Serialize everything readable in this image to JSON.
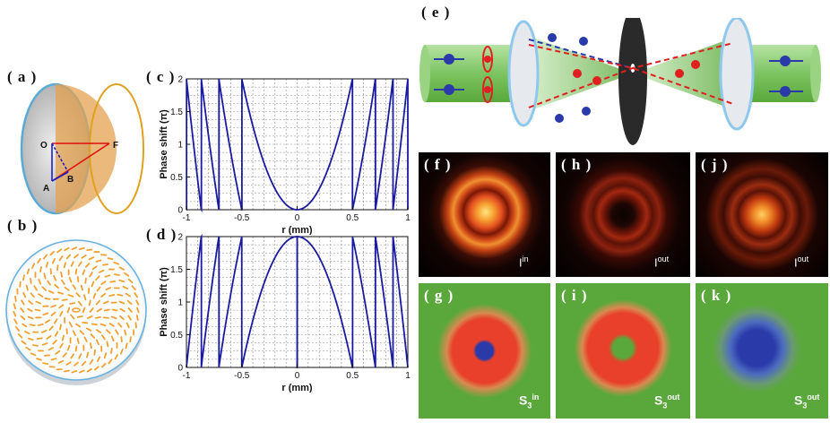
{
  "labels": {
    "a": "( a )",
    "b": "( b )",
    "c": "( c )",
    "d": "( d )",
    "e": "( e )",
    "f": "( f )",
    "g": "( g )",
    "h": "( h )",
    "i": "( i )",
    "j": "( j )",
    "k": "( k )"
  },
  "lens_points": {
    "O": "O",
    "F": "F",
    "A": "A",
    "B": "B"
  },
  "colors": {
    "axis_line": "#1a1aa0",
    "lens_face": "#c9c9c9",
    "lens_rim": "#5aaad8",
    "cone_fill": "#e3a14f",
    "dash_pattern": "#f0a030",
    "beam": "#8fd07a",
    "s3_background": "#5aa83b",
    "s3_red": "#e8402a",
    "s3_blue": "#2a3aa8"
  },
  "chart_data": [
    {
      "type": "line",
      "panel": "c",
      "title": "",
      "xlabel": "r (mm)",
      "ylabel": "Phase shift (π)",
      "xlim": [
        -1,
        1
      ],
      "ylim": [
        0,
        2
      ],
      "xticks": [
        "-1",
        "-0.5",
        "0",
        "0.5",
        "1"
      ],
      "yticks": [
        "0",
        "0.5",
        "1",
        "1.5",
        "2"
      ],
      "series": [
        {
          "name": "phase_c",
          "formula": "(2 * r^2 / 0.5^2) mod 2",
          "x_range": [
            -1,
            1
          ]
        }
      ]
    },
    {
      "type": "line",
      "panel": "d",
      "title": "",
      "xlabel": "r (mm)",
      "ylabel": "Phase shift (π)",
      "xlim": [
        -1,
        1
      ],
      "ylim": [
        0,
        2
      ],
      "xticks": [
        "-1",
        "-0.5",
        "0",
        "0.5",
        "1"
      ],
      "yticks": [
        "0",
        "0.5",
        "1",
        "1.5",
        "2"
      ],
      "series": [
        {
          "name": "phase_d",
          "formula": "(2 - 2 * r^2 / 0.5^2) mod 2",
          "x_range": [
            -1,
            1
          ]
        }
      ]
    }
  ],
  "intensity_labels": {
    "f": {
      "base": "I",
      "sup": "in"
    },
    "h": {
      "base": "I",
      "sup": "out"
    },
    "j": {
      "base": "I",
      "sup": "out"
    }
  },
  "stokes_labels": {
    "g": {
      "base": "S",
      "sub": "3",
      "sup": "in"
    },
    "i": {
      "base": "S",
      "sub": "3",
      "sup": "out"
    },
    "k": {
      "base": "S",
      "sub": "3",
      "sup": "out"
    }
  }
}
